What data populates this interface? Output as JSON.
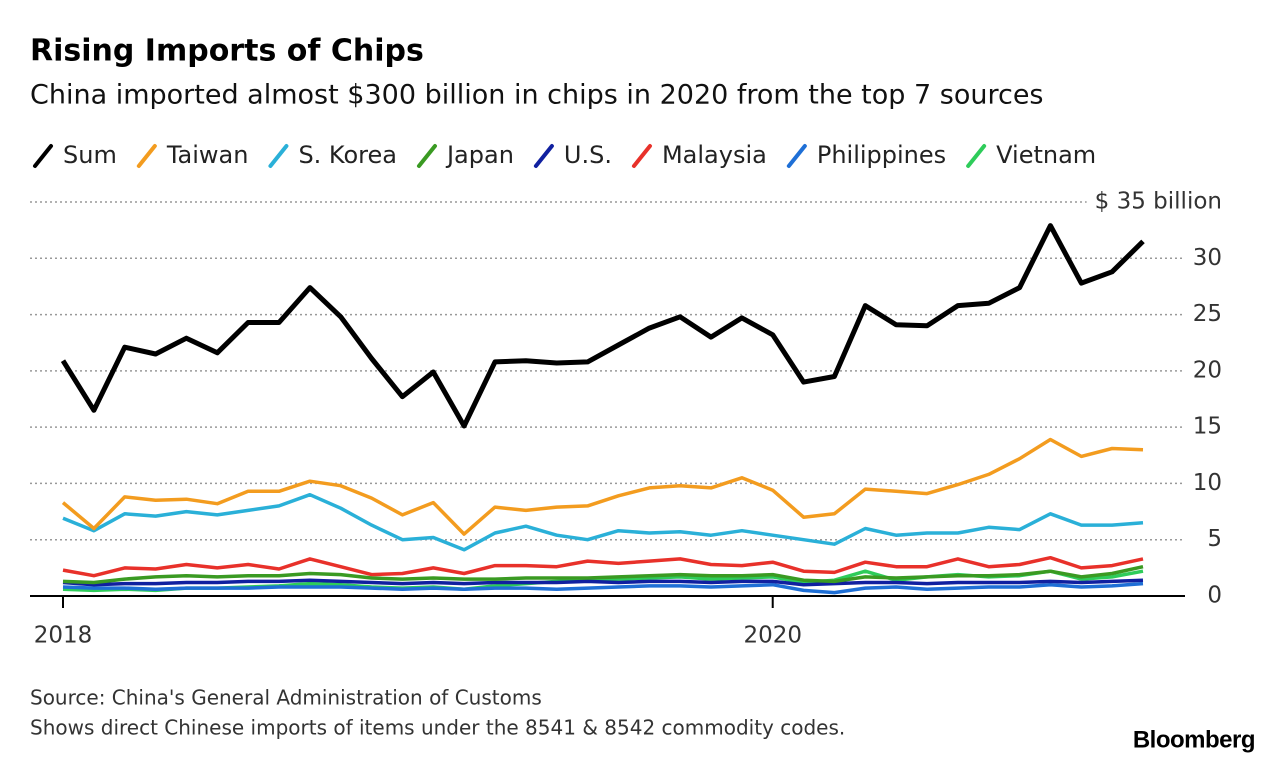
{
  "chart_data": {
    "type": "line",
    "title": "Rising Imports of Chips",
    "subtitle": "China imported almost $300 billion in chips in 2020 from the top 7 sources",
    "source": "Source: China's General Administration of Customs",
    "note": "Shows direct Chinese imports of items under the 8541 & 8542 commodity codes.",
    "brand": "Bloomberg",
    "categories": [
      "2018",
      null,
      null,
      null,
      null,
      null,
      null,
      null,
      null,
      null,
      null,
      null,
      null,
      null,
      null,
      null,
      null,
      null,
      null,
      null,
      null,
      null,
      null,
      "2020",
      null,
      null,
      null,
      null,
      null,
      null,
      null,
      null,
      null,
      null,
      null,
      null
    ],
    "ylim": [
      0,
      35
    ],
    "yticks": [
      0,
      5,
      10,
      15,
      20,
      25,
      30,
      {
        "value": 35,
        "label": "$ 35 billion"
      }
    ],
    "grid": true,
    "series": [
      {
        "name": "Sum",
        "color": "#000000",
        "values": [
          20.9,
          16.5,
          22.1,
          21.5,
          22.9,
          21.6,
          24.3,
          24.3,
          27.4,
          24.8,
          21.1,
          17.7,
          19.9,
          15.1,
          20.8,
          20.9,
          20.7,
          20.8,
          22.3,
          23.8,
          24.8,
          23.0,
          24.7,
          23.2,
          19.0,
          19.5,
          25.8,
          24.1,
          24.0,
          25.8,
          26.0,
          27.4,
          32.9,
          27.8,
          28.8,
          31.5
        ]
      },
      {
        "name": "Taiwan",
        "color": "#f39c1f",
        "values": [
          8.3,
          6.0,
          8.8,
          8.5,
          8.6,
          8.2,
          9.3,
          9.3,
          10.2,
          9.8,
          8.7,
          7.2,
          8.3,
          5.5,
          7.9,
          7.6,
          7.9,
          8.0,
          8.9,
          9.6,
          9.8,
          9.6,
          10.5,
          9.4,
          7.0,
          7.3,
          9.5,
          9.3,
          9.1,
          9.9,
          10.8,
          12.2,
          13.9,
          12.4,
          13.1,
          13.0
        ]
      },
      {
        "name": "S. Korea",
        "color": "#2ab0d8",
        "values": [
          6.9,
          5.8,
          7.3,
          7.1,
          7.5,
          7.2,
          7.6,
          8.0,
          9.0,
          7.8,
          6.3,
          5.0,
          5.2,
          4.1,
          5.6,
          6.2,
          5.4,
          5.0,
          5.8,
          5.6,
          5.7,
          5.4,
          5.8,
          5.4,
          5.0,
          4.6,
          6.0,
          5.4,
          5.6,
          5.6,
          6.1,
          5.9,
          7.3,
          6.3,
          6.3,
          6.5
        ]
      },
      {
        "name": "Japan",
        "color": "#3a9a22",
        "values": [
          1.3,
          1.2,
          1.5,
          1.7,
          1.8,
          1.7,
          1.8,
          1.8,
          2.0,
          1.9,
          1.6,
          1.5,
          1.6,
          1.5,
          1.5,
          1.6,
          1.6,
          1.6,
          1.7,
          1.8,
          1.9,
          1.8,
          1.8,
          1.9,
          1.4,
          1.3,
          1.7,
          1.6,
          1.7,
          1.8,
          1.8,
          1.9,
          2.2,
          1.7,
          2.0,
          2.6
        ]
      },
      {
        "name": "U.S.",
        "color": "#1020a0",
        "values": [
          1.2,
          1.0,
          1.1,
          1.1,
          1.2,
          1.2,
          1.3,
          1.3,
          1.4,
          1.3,
          1.2,
          1.1,
          1.2,
          1.1,
          1.2,
          1.2,
          1.2,
          1.3,
          1.2,
          1.3,
          1.3,
          1.2,
          1.3,
          1.3,
          1.0,
          1.1,
          1.2,
          1.2,
          1.1,
          1.2,
          1.2,
          1.2,
          1.3,
          1.2,
          1.3,
          1.4
        ]
      },
      {
        "name": "Malaysia",
        "color": "#e8312a",
        "values": [
          2.3,
          1.8,
          2.5,
          2.4,
          2.8,
          2.5,
          2.8,
          2.4,
          3.3,
          2.6,
          1.9,
          2.0,
          2.5,
          2.0,
          2.7,
          2.7,
          2.6,
          3.1,
          2.9,
          3.1,
          3.3,
          2.8,
          2.7,
          3.0,
          2.2,
          2.1,
          3.0,
          2.6,
          2.6,
          3.3,
          2.6,
          2.8,
          3.4,
          2.5,
          2.7,
          3.3
        ]
      },
      {
        "name": "Philippines",
        "color": "#1e6fd6",
        "values": [
          0.8,
          0.7,
          0.7,
          0.6,
          0.7,
          0.7,
          0.7,
          0.8,
          0.8,
          0.8,
          0.7,
          0.6,
          0.7,
          0.6,
          0.7,
          0.7,
          0.6,
          0.7,
          0.8,
          0.9,
          0.9,
          0.8,
          0.9,
          1.0,
          0.5,
          0.3,
          0.7,
          0.8,
          0.6,
          0.7,
          0.8,
          0.8,
          1.0,
          0.8,
          0.9,
          1.1
        ]
      },
      {
        "name": "Vietnam",
        "color": "#2ecc5a",
        "values": [
          0.6,
          0.5,
          0.6,
          0.5,
          0.7,
          0.7,
          0.8,
          0.9,
          1.1,
          1.0,
          0.8,
          0.7,
          0.8,
          0.6,
          0.9,
          1.1,
          1.3,
          1.4,
          1.5,
          1.6,
          1.7,
          1.5,
          1.6,
          1.7,
          1.2,
          1.4,
          2.2,
          1.4,
          1.7,
          1.9,
          1.7,
          1.8,
          2.2,
          1.5,
          1.7,
          2.2
        ]
      }
    ]
  }
}
